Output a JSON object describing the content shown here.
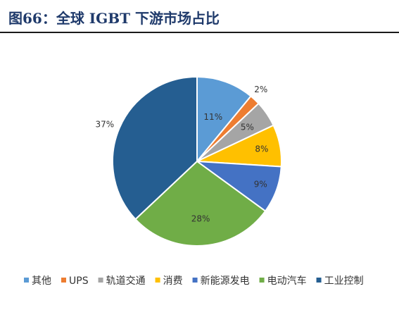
{
  "figure": {
    "title": "图66：全球 IGBT 下游市场占比"
  },
  "chart_data": {
    "type": "pie",
    "title": "",
    "legend_position": "bottom",
    "slices": [
      {
        "label": "其他",
        "value": 11,
        "text": "11%",
        "color": "#5b9bd5"
      },
      {
        "label": "UPS",
        "value": 2,
        "text": "2%",
        "color": "#ed7d31"
      },
      {
        "label": "轨道交通",
        "value": 5,
        "text": "5%",
        "color": "#a5a5a5"
      },
      {
        "label": "消费",
        "value": 8,
        "text": "8%",
        "color": "#ffc000"
      },
      {
        "label": "新能源发电",
        "value": 9,
        "text": "9%",
        "color": "#4472c4"
      },
      {
        "label": "电动汽车",
        "value": 28,
        "text": "28%",
        "color": "#70ad47"
      },
      {
        "label": "工业控制",
        "value": 37,
        "text": "37%",
        "color": "#255e91"
      }
    ]
  }
}
